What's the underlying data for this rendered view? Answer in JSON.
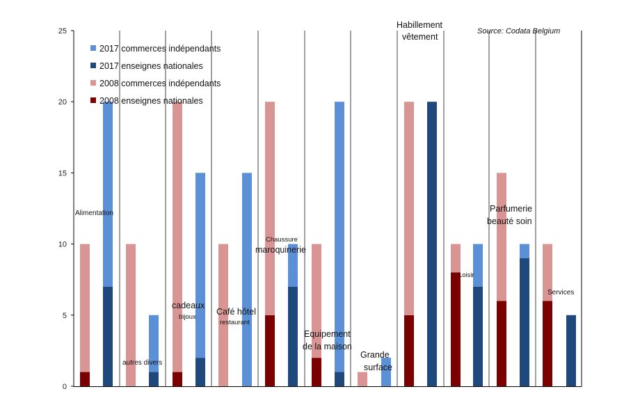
{
  "chart_data": {
    "type": "bar",
    "stacked": true,
    "source_note": "Source: Codata Belgium",
    "ylim": [
      0,
      25
    ],
    "yticks": [
      "0",
      "5",
      "10",
      "15",
      "20",
      "25"
    ],
    "colors": {
      "ind_2017": "#5b8fd6",
      "nat_2017": "#1f497d",
      "ind_2008": "#d99594",
      "nat_2008": "#7b0000",
      "axis": "#000000",
      "separator": "#404040"
    },
    "legend": [
      {
        "key": "ind_2017",
        "label": "2017  commerces indépendants"
      },
      {
        "key": "nat_2017",
        "label": "2017 enseignes nationales"
      },
      {
        "key": "ind_2008",
        "label": "2008  commerces indépendants"
      },
      {
        "key": "nat_2008",
        "label": "2008 enseignes nationales"
      }
    ],
    "categories": [
      {
        "label": [
          "Alimentation"
        ],
        "y2008": {
          "nationales": 1,
          "total": 10
        },
        "y2017": {
          "nationales": 7,
          "total": 20
        }
      },
      {
        "label": [
          "autres divers"
        ],
        "y2008": {
          "nationales": 0,
          "total": 10
        },
        "y2017": {
          "nationales": 1,
          "total": 5
        }
      },
      {
        "label": [
          "cadeaux",
          "bijoux"
        ],
        "y2008": {
          "nationales": 1,
          "total": 20
        },
        "y2017": {
          "nationales": 2,
          "total": 15
        }
      },
      {
        "label": [
          "Café hôtel",
          "restaurant"
        ],
        "y2008": {
          "nationales": 0,
          "total": 10
        },
        "y2017": {
          "nationales": 0,
          "total": 15
        }
      },
      {
        "label": [
          "Chaussure",
          "maroquinerie"
        ],
        "y2008": {
          "nationales": 5,
          "total": 20
        },
        "y2017": {
          "nationales": 7,
          "total": 10
        }
      },
      {
        "label": [
          "Equipement",
          "de la maison"
        ],
        "y2008": {
          "nationales": 2,
          "total": 10
        },
        "y2017": {
          "nationales": 1,
          "total": 20
        }
      },
      {
        "label": [
          "Grande",
          "surface"
        ],
        "y2008": {
          "nationales": 0,
          "total": 1
        },
        "y2017": {
          "nationales": 0,
          "total": 2
        }
      },
      {
        "label": [
          "Habillement",
          "vêtement"
        ],
        "y2008": {
          "nationales": 5,
          "total": 20
        },
        "y2017": {
          "nationales": 20,
          "total": 20
        }
      },
      {
        "label": [
          "Loisir"
        ],
        "y2008": {
          "nationales": 8,
          "total": 10
        },
        "y2017": {
          "nationales": 7,
          "total": 10
        }
      },
      {
        "label": [
          "Parfumerie",
          "beauté soin"
        ],
        "y2008": {
          "nationales": 6,
          "total": 15
        },
        "y2017": {
          "nationales": 9,
          "total": 10
        }
      },
      {
        "label": [
          "Services"
        ],
        "y2008": {
          "nationales": 6,
          "total": 10
        },
        "y2017": {
          "nationales": 5,
          "total": 5
        }
      }
    ]
  }
}
